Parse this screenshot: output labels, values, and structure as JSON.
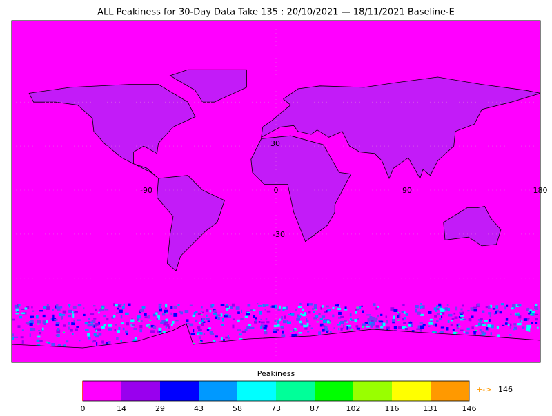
{
  "title": "ALL Peakiness for 30-Day Data Take 135 : 20/10/2021 — 18/11/2021 Baseline-E",
  "map": {
    "lat_labels": [
      "30",
      "-30"
    ],
    "lon_labels": [
      "-90",
      "0",
      "90",
      "180"
    ]
  },
  "colorbar": {
    "label": "Peakiness",
    "colors": [
      "#ff00ff",
      "#9900ee",
      "#0000ff",
      "#0099ff",
      "#00ffff",
      "#00ff99",
      "#00ff00",
      "#99ff00",
      "#ffff00",
      "#ff9900"
    ],
    "ticks": [
      "0",
      "14",
      "29",
      "43",
      "58",
      "73",
      "87",
      "102",
      "116",
      "131",
      "146"
    ],
    "overflow_arrow": "+->",
    "overflow_value": "146"
  }
}
